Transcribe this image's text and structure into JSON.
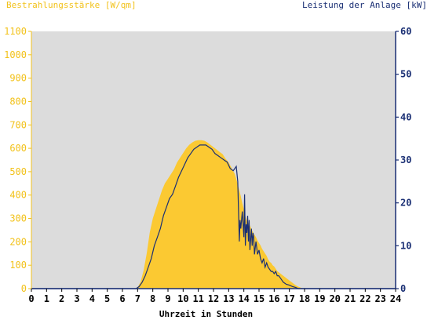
{
  "chart_data": {
    "type": "area",
    "title": "",
    "left_axis_label": "Bestrahlungsstärke [W/qm]",
    "right_axis_label": "Leistung der Anlage [kW]",
    "xlabel": "Uhrzeit in Stunden",
    "xlim": [
      0,
      24
    ],
    "y_left_lim": [
      0,
      1100
    ],
    "y_right_lim": [
      0,
      60
    ],
    "x_ticks": [
      "0",
      "1",
      "2",
      "3",
      "4",
      "5",
      "6",
      "7",
      "8",
      "9",
      "10",
      "11",
      "12",
      "13",
      "14",
      "15",
      "16",
      "17",
      "18",
      "19",
      "20",
      "21",
      "22",
      "23",
      "24"
    ],
    "y_left_ticks": [
      "0",
      "100",
      "200",
      "300",
      "400",
      "500",
      "600",
      "700",
      "800",
      "900",
      "1000",
      "1100"
    ],
    "y_right_ticks": [
      "0",
      "10",
      "20",
      "30",
      "40",
      "50",
      "60"
    ],
    "grid": false,
    "series": [
      {
        "name": "Bestrahlungsstärke [W/qm]",
        "axis": "left",
        "style": "filled-area",
        "color": "#fbc932",
        "x": [
          0,
          6.8,
          7.0,
          7.2,
          7.4,
          7.6,
          7.8,
          8.0,
          8.2,
          8.4,
          8.6,
          8.8,
          9.0,
          9.2,
          9.4,
          9.6,
          9.8,
          10.0,
          10.2,
          10.4,
          10.6,
          10.8,
          11.0,
          11.2,
          11.4,
          11.6,
          11.8,
          12.0,
          12.2,
          12.4,
          12.6,
          12.8,
          13.0,
          13.2,
          13.4,
          13.5,
          13.6,
          13.7,
          13.8,
          13.9,
          14.0,
          14.1,
          14.2,
          14.3,
          14.4,
          14.5,
          14.6,
          14.7,
          14.8,
          14.9,
          15.0,
          15.1,
          15.2,
          15.3,
          15.4,
          15.5,
          15.6,
          15.7,
          15.8,
          15.9,
          16.0,
          16.1,
          16.2,
          16.3,
          16.4,
          16.5,
          16.6,
          16.8,
          17.0,
          17.2,
          17.4,
          17.6,
          17.8,
          18.0,
          18.2,
          24
        ],
        "values": [
          0,
          0,
          5,
          30,
          80,
          150,
          240,
          300,
          340,
          380,
          420,
          450,
          470,
          490,
          510,
          540,
          560,
          580,
          600,
          615,
          625,
          632,
          635,
          635,
          632,
          625,
          615,
          605,
          595,
          585,
          575,
          555,
          540,
          515,
          490,
          470,
          445,
          420,
          395,
          365,
          340,
          310,
          290,
          280,
          270,
          255,
          240,
          230,
          220,
          205,
          195,
          185,
          170,
          160,
          150,
          140,
          125,
          115,
          110,
          100,
          95,
          85,
          75,
          70,
          65,
          60,
          55,
          45,
          35,
          25,
          15,
          8,
          3,
          0,
          0,
          0
        ],
        "source_note": null
      },
      {
        "name": "Leistung der Anlage [kW]",
        "axis": "right",
        "style": "line",
        "color": "#1a2f74",
        "x": [
          0,
          6.9,
          7.1,
          7.3,
          7.5,
          7.7,
          7.9,
          8.1,
          8.3,
          8.5,
          8.7,
          8.9,
          9.1,
          9.3,
          9.5,
          9.7,
          9.9,
          10.1,
          10.3,
          10.5,
          10.7,
          10.9,
          11.1,
          11.3,
          11.5,
          11.7,
          11.9,
          12.1,
          12.3,
          12.5,
          12.7,
          12.9,
          13.1,
          13.3,
          13.4,
          13.5,
          13.6,
          13.7,
          13.75,
          13.8,
          13.9,
          14.0,
          14.05,
          14.1,
          14.15,
          14.2,
          14.25,
          14.3,
          14.35,
          14.4,
          14.5,
          14.55,
          14.6,
          14.65,
          14.7,
          14.8,
          14.9,
          15.0,
          15.1,
          15.2,
          15.3,
          15.4,
          15.5,
          15.6,
          15.7,
          15.8,
          15.9,
          16.0,
          16.1,
          16.2,
          16.3,
          16.4,
          16.5,
          16.6,
          16.8,
          17.0,
          17.2,
          17.4,
          17.6,
          17.8,
          18.0,
          24
        ],
        "values": [
          0,
          0,
          0.5,
          1.5,
          3,
          5,
          7,
          10,
          12,
          14,
          17,
          19,
          21,
          22,
          24,
          26,
          27.5,
          29,
          30.5,
          31.5,
          32.5,
          33,
          33.5,
          33.5,
          33.5,
          33,
          32.5,
          31.5,
          31,
          30.5,
          30,
          29.5,
          28,
          27.5,
          28,
          28.5,
          25,
          11,
          16,
          14,
          18,
          12,
          22,
          10,
          15,
          13,
          17,
          11,
          16,
          9,
          14,
          10,
          13,
          12,
          8,
          11,
          8,
          9,
          7,
          6,
          7,
          5,
          6,
          5,
          4.5,
          4,
          4,
          3.5,
          4,
          3,
          3,
          2.5,
          2,
          1.5,
          1,
          0.8,
          0.5,
          0.3,
          0,
          0,
          0,
          0
        ]
      }
    ]
  },
  "colors": {
    "plot_background": "#dcdcdc",
    "left_axis": "#f2c21b",
    "right_axis": "#1a2f74",
    "x_axis": "#000000"
  }
}
